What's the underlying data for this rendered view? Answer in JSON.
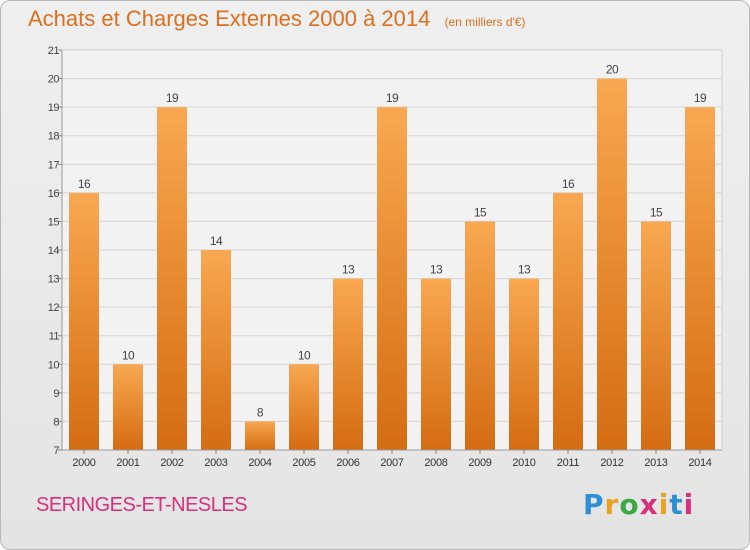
{
  "chart_data": {
    "type": "bar",
    "title": "Achats et Charges Externes 2000 à 2014",
    "subtitle": "(en milliers d'€)",
    "categories": [
      "2000",
      "2001",
      "2002",
      "2003",
      "2004",
      "2005",
      "2006",
      "2007",
      "2008",
      "2009",
      "2010",
      "2011",
      "2012",
      "2013",
      "2014"
    ],
    "values": [
      16,
      10,
      19,
      14,
      8,
      10,
      13,
      19,
      13,
      15,
      13,
      16,
      20,
      15,
      19
    ],
    "ylim": [
      7,
      21
    ],
    "yticks": [
      7,
      8,
      9,
      10,
      11,
      12,
      13,
      14,
      15,
      16,
      17,
      18,
      19,
      20,
      21
    ],
    "grid": true,
    "bar_color": "#f29a45",
    "bar_color_dark": "#d66f15"
  },
  "footer": {
    "town": "SERINGES-ET-NESLES",
    "logo": {
      "letters": [
        "P",
        "r",
        "o",
        "x",
        "i",
        "t",
        "i"
      ],
      "colors": [
        "#2f8fd6",
        "#e8a21d",
        "#39a845",
        "#d8307a",
        "#e8a21d",
        "#2f8fd6",
        "#d8307a"
      ]
    }
  }
}
